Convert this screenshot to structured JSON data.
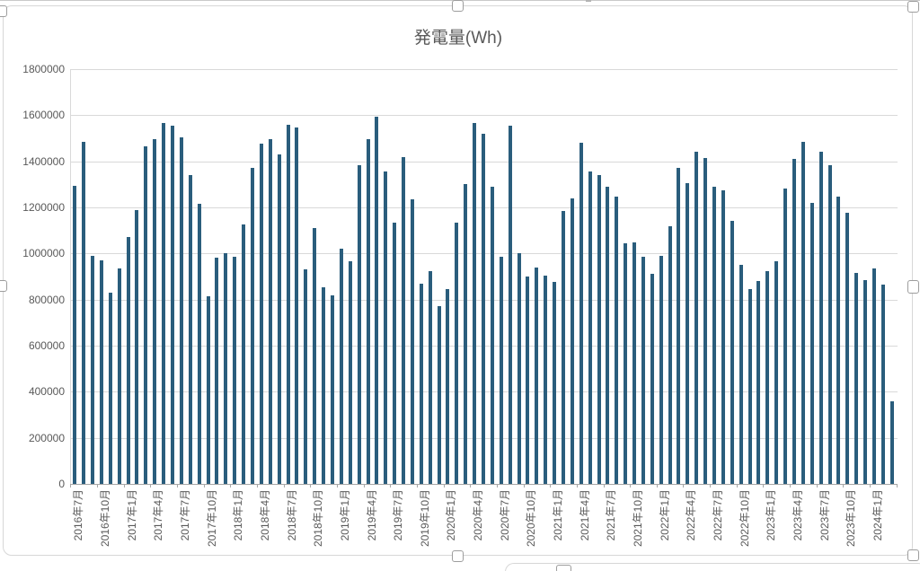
{
  "chart_title": "発電量(Wh)",
  "y_axis": {
    "labels": [
      "0",
      "200000",
      "400000",
      "600000",
      "800000",
      "1000000",
      "1200000",
      "1400000",
      "1600000",
      "1800000"
    ]
  },
  "x_axis": {
    "label_interval": 3,
    "first_label": "2016年7月",
    "last_label": "2024年1月"
  },
  "colors": {
    "bar": "#2a5d7c",
    "grid": "#d9d9d9",
    "axis": "#a6a6a6",
    "text": "#595959",
    "border": "#d7d7d7"
  },
  "chart_data": {
    "type": "bar",
    "title": "発電量(Wh)",
    "ylim": [
      0,
      1800000
    ],
    "y_step": 200000,
    "grid": true,
    "legend": "none",
    "x_tick_label_interval": 3,
    "x_tick_label_rotation": -90,
    "categories": [
      "2016年7月",
      "2016年8月",
      "2016年9月",
      "2016年10月",
      "2016年11月",
      "2016年12月",
      "2017年1月",
      "2017年2月",
      "2017年3月",
      "2017年4月",
      "2017年5月",
      "2017年6月",
      "2017年7月",
      "2017年8月",
      "2017年9月",
      "2017年10月",
      "2017年11月",
      "2017年12月",
      "2018年1月",
      "2018年2月",
      "2018年3月",
      "2018年4月",
      "2018年5月",
      "2018年6月",
      "2018年7月",
      "2018年8月",
      "2018年9月",
      "2018年10月",
      "2018年11月",
      "2018年12月",
      "2019年1月",
      "2019年2月",
      "2019年3月",
      "2019年4月",
      "2019年5月",
      "2019年6月",
      "2019年7月",
      "2019年8月",
      "2019年9月",
      "2019年10月",
      "2019年11月",
      "2019年12月",
      "2020年1月",
      "2020年2月",
      "2020年3月",
      "2020年4月",
      "2020年5月",
      "2020年6月",
      "2020年7月",
      "2020年8月",
      "2020年9月",
      "2020年10月",
      "2020年11月",
      "2020年12月",
      "2021年1月",
      "2021年2月",
      "2021年3月",
      "2021年4月",
      "2021年5月",
      "2021年6月",
      "2021年7月",
      "2021年8月",
      "2021年9月",
      "2021年10月",
      "2021年11月",
      "2021年12月",
      "2022年1月",
      "2022年2月",
      "2022年3月",
      "2022年4月",
      "2022年5月",
      "2022年6月",
      "2022年7月",
      "2022年8月",
      "2022年9月",
      "2022年10月",
      "2022年11月",
      "2022年12月",
      "2023年1月",
      "2023年2月",
      "2023年3月",
      "2023年4月",
      "2023年5月",
      "2023年6月",
      "2023年7月",
      "2023年8月",
      "2023年9月",
      "2023年10月",
      "2023年11月",
      "2023年12月",
      "2024年1月",
      "2024年2月",
      "2024年3月"
    ],
    "values": [
      1295000,
      1485000,
      990000,
      970000,
      830000,
      935000,
      1070000,
      1190000,
      1465000,
      1495000,
      1565000,
      1555000,
      1505000,
      1340000,
      1215000,
      815000,
      980000,
      1000000,
      985000,
      1125000,
      1370000,
      1475000,
      1495000,
      1430000,
      1560000,
      1545000,
      930000,
      1110000,
      855000,
      820000,
      1020000,
      965000,
      1385000,
      1495000,
      1595000,
      1355000,
      1135000,
      1420000,
      1235000,
      870000,
      925000,
      770000,
      845000,
      1135000,
      1300000,
      1565000,
      1520000,
      1290000,
      985000,
      1555000,
      1000000,
      900000,
      940000,
      905000,
      875000,
      1185000,
      1240000,
      1480000,
      1355000,
      1340000,
      1290000,
      1245000,
      1045000,
      1050000,
      985000,
      910000,
      990000,
      1120000,
      1370000,
      1305000,
      1440000,
      1415000,
      1290000,
      1275000,
      1140000,
      950000,
      845000,
      880000,
      925000,
      965000,
      1280000,
      1410000,
      1485000,
      1220000,
      1440000,
      1385000,
      1245000,
      1175000,
      915000,
      885000,
      935000,
      865000,
      360000
    ]
  }
}
